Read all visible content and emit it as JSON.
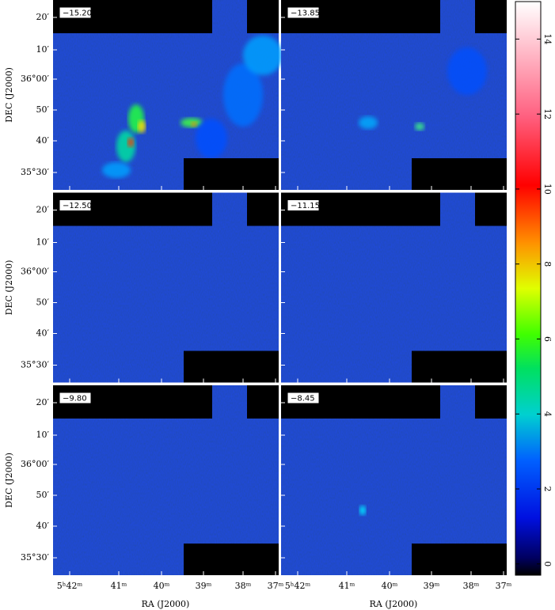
{
  "panels": [
    {
      "label": "−15.20"
    },
    {
      "label": "−13.85"
    },
    {
      "label": "−12.50"
    },
    {
      "label": "−11.15"
    },
    {
      "label": "−9.80"
    },
    {
      "label": "−8.45"
    }
  ],
  "y_ticks": [
    "20′",
    "10′",
    "36°00′",
    "50′",
    "40′",
    "35°30′"
  ],
  "x_ticks": [
    "5ʰ42ᵐ",
    "41ᵐ",
    "40ᵐ",
    "39ᵐ",
    "38ᵐ",
    "37ᵐ"
  ],
  "y_axis_label": "DEC (J2000)",
  "x_axis_label": "RA (J2000)",
  "colorbar": {
    "lim": [
      -0.3,
      15
    ],
    "ticks": [
      0,
      2,
      4,
      6,
      8,
      10,
      12,
      14
    ]
  }
}
